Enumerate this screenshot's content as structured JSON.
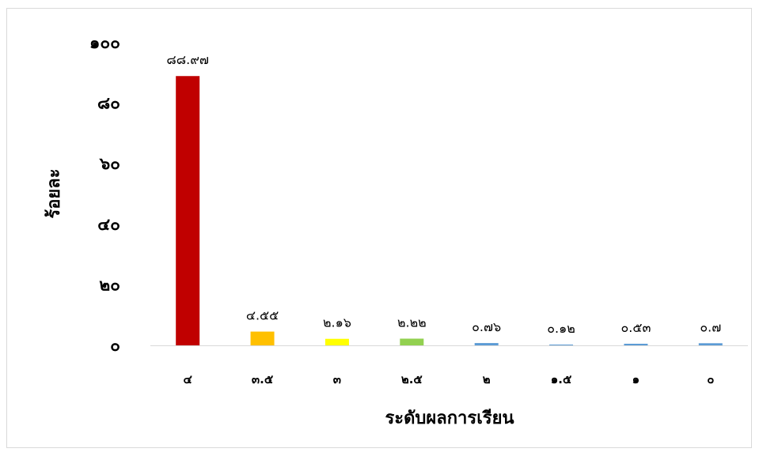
{
  "chart_data": {
    "type": "bar",
    "title": "",
    "xlabel": "ระดับผลการเรียน",
    "ylabel": "ร้อยละ",
    "categories": [
      "๔",
      "๓.๕",
      "๓",
      "๒.๕",
      "๒",
      "๑.๕",
      "๑",
      "๐"
    ],
    "values": [
      88.97,
      4.55,
      2.16,
      2.22,
      0.76,
      0.12,
      0.53,
      0.7
    ],
    "data_labels": [
      "๘๘.๙๗",
      "๔.๕๕",
      "๒.๑๖",
      "๒.๒๒",
      "๐.๗๖",
      "๐.๑๒",
      "๐.๕๓",
      "๐.๗"
    ],
    "colors": [
      "#c00000",
      "#ffc000",
      "#ffff00",
      "#92d050",
      "#5b9bd5",
      "#5b9bd5",
      "#5b9bd5",
      "#5b9bd5"
    ],
    "ylim": [
      0,
      100
    ],
    "yticks": [
      0,
      20,
      40,
      60,
      80,
      100
    ],
    "ytick_labels": [
      "๐",
      "๒๐",
      "๔๐",
      "๖๐",
      "๘๐",
      "๑๐๐"
    ],
    "grid": false,
    "legend": "none"
  }
}
